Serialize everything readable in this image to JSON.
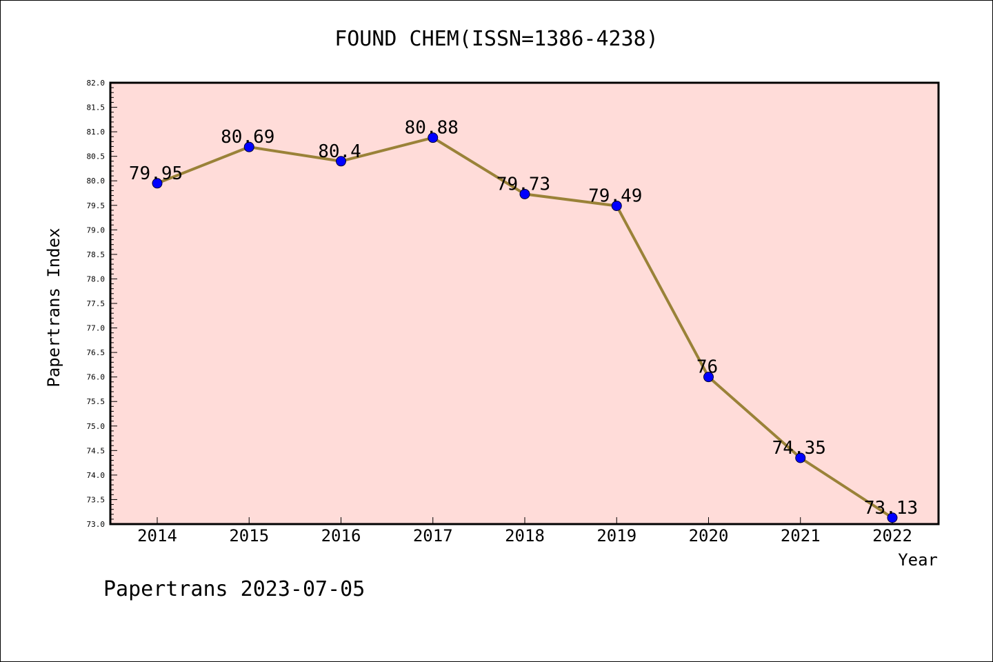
{
  "chart_data": {
    "type": "line",
    "title": "FOUND CHEM(ISSN=1386-4238)",
    "xlabel": "Year",
    "ylabel": "Papertrans Index",
    "categories": [
      "2014",
      "2015",
      "2016",
      "2017",
      "2018",
      "2019",
      "2020",
      "2021",
      "2022"
    ],
    "values": [
      79.95,
      80.69,
      80.4,
      80.88,
      79.73,
      79.49,
      76,
      74.35,
      73.13
    ],
    "data_labels": [
      "79.95",
      "80.69",
      "80.4",
      "80.88",
      "79.73",
      "79.49",
      "76",
      "74.35",
      "73.13"
    ],
    "ylim": [
      73.0,
      82.0
    ],
    "yticks": [
      "73.0",
      "73.5",
      "74.0",
      "74.5",
      "75.0",
      "75.5",
      "76.0",
      "76.5",
      "77.0",
      "77.5",
      "78.0",
      "78.5",
      "79.0",
      "79.5",
      "80.0",
      "80.5",
      "81.0",
      "81.5",
      "82.0"
    ],
    "grid": false,
    "colors": {
      "plot_background": "#ffdcd9",
      "line": "#9a8238",
      "marker": "#0000ff"
    }
  },
  "footer": {
    "watermark": "Papertrans 2023-07-05"
  }
}
